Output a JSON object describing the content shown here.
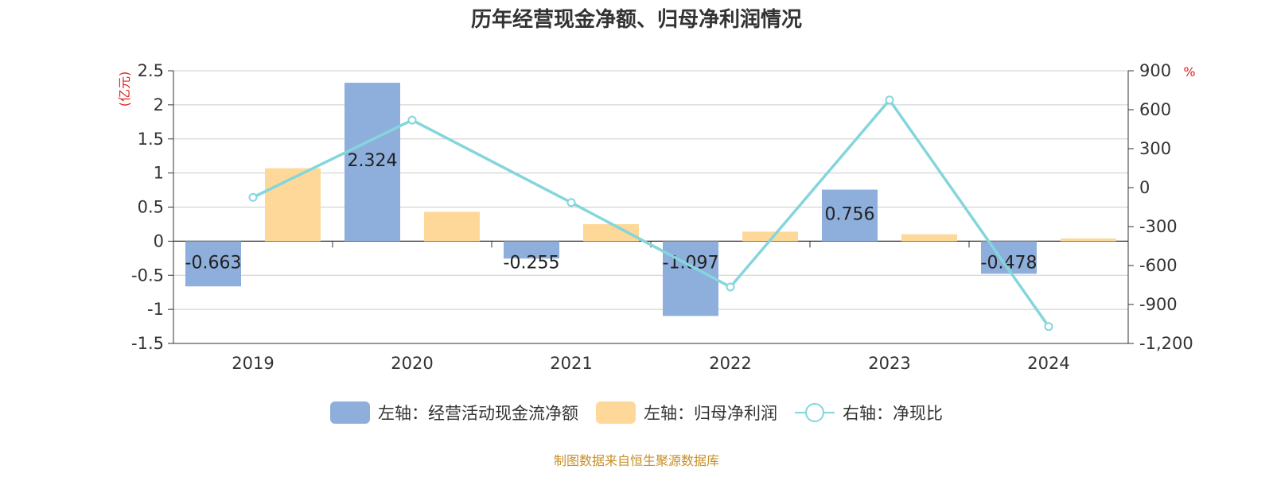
{
  "title": "历年经营现金净额、归母净利润情况",
  "source": "制图数据来自恒生聚源数据库",
  "chart_data": {
    "type": "bar",
    "categories": [
      "2019",
      "2020",
      "2021",
      "2022",
      "2023",
      "2024"
    ],
    "left_axis": {
      "unit": "(亿元)",
      "min": -1.5,
      "max": 2.5,
      "ticks": [
        -1.5,
        -1,
        -0.5,
        0,
        0.5,
        1,
        1.5,
        2,
        2.5
      ],
      "tick_labels": [
        "-1.5",
        "-1",
        "-0.5",
        "0",
        "0.5",
        "1",
        "1.5",
        "2",
        "2.5"
      ]
    },
    "right_axis": {
      "unit": "%",
      "min": -1200,
      "max": 900,
      "ticks": [
        -1200,
        -900,
        -600,
        -300,
        0,
        300,
        600,
        900
      ],
      "tick_labels": [
        "-1,200",
        "-900",
        "-600",
        "-300",
        "0",
        "300",
        "600",
        "900"
      ]
    },
    "series": [
      {
        "name": "左轴：经营活动现金流净额",
        "type": "bar",
        "axis": "left",
        "color": "#8eaedb",
        "values": [
          -0.663,
          2.324,
          -0.255,
          -1.097,
          0.756,
          -0.478
        ],
        "labels": [
          "-0.663",
          "2.324",
          "-0.255",
          "-1.097",
          "0.756",
          "-0.478"
        ]
      },
      {
        "name": "左轴：归母净利润",
        "type": "bar",
        "axis": "left",
        "color": "#fdd899",
        "values": [
          1.07,
          0.43,
          0.25,
          0.14,
          0.1,
          0.04
        ]
      },
      {
        "name": "右轴：净现比",
        "type": "line",
        "axis": "right",
        "color": "#84d6dc",
        "values": [
          -75,
          520,
          -115,
          -765,
          675,
          -1070
        ]
      }
    ],
    "grid": true,
    "legend_position": "bottom"
  }
}
